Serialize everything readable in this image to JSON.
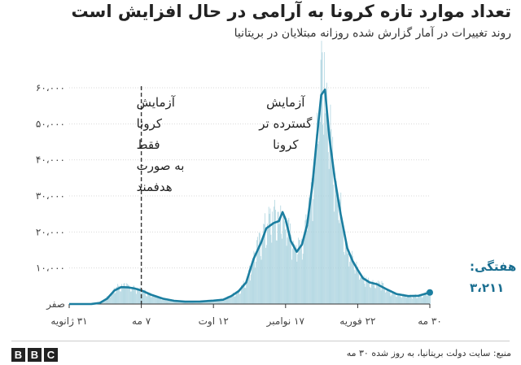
{
  "title": "تعداد موارد تازه کرونا به آرامی در حال افزایش است",
  "subtitle": "روند تغییرات در آمار گزارش شده روزانه مبتلایان در بریتانیا",
  "source": "منبع: سایت دولت بریتانیا، به روز شده ۳۰ مه",
  "logo": [
    "B",
    "B",
    "C"
  ],
  "colors": {
    "bars": "#a9d2de",
    "line": "#1b7ea0",
    "text": "#222222",
    "grid": "#d9d9d9",
    "highlight": "#1b6f91"
  },
  "chart_data": {
    "type": "bar",
    "title": "تعداد موارد تازه کرونا به آرامی در حال افزایش است",
    "subtitle": "روند تغییرات در آمار گزارش شده روزانه مبتلایان در بریتانیا",
    "x_domain": [
      "2020-01-31",
      "2021-05-30"
    ],
    "ylim": [
      0,
      60000
    ],
    "yticks": [
      {
        "value": 0,
        "label": "صفر"
      },
      {
        "value": 10000,
        "label": "۱۰،۰۰۰"
      },
      {
        "value": 20000,
        "label": "۲۰،۰۰۰"
      },
      {
        "value": 30000,
        "label": "۳۰،۰۰۰"
      },
      {
        "value": 40000,
        "label": "۴۰،۰۰۰"
      },
      {
        "value": 50000,
        "label": "۵۰،۰۰۰"
      },
      {
        "value": 60000,
        "label": "۶۰،۰۰۰"
      }
    ],
    "xticks": [
      {
        "date": "2020-01-31",
        "label": "۳۱ ژانویه"
      },
      {
        "date": "2020-05-07",
        "label": "۷ مه"
      },
      {
        "date": "2020-08-12",
        "label": "۱۲ اوت"
      },
      {
        "date": "2020-11-17",
        "label": "۱۷ نوامبر"
      },
      {
        "date": "2021-02-22",
        "label": "۲۲ فوریه"
      },
      {
        "date": "2021-05-30",
        "label": "۳۰ مه"
      }
    ],
    "grid": true,
    "series": [
      {
        "kind": "bars",
        "daily_keypoints": [
          [
            "2020-01-31",
            0
          ],
          [
            "2020-03-01",
            50
          ],
          [
            "2020-03-15",
            800
          ],
          [
            "2020-03-25",
            2500
          ],
          [
            "2020-04-05",
            4800
          ],
          [
            "2020-04-15",
            5000
          ],
          [
            "2020-04-25",
            4600
          ],
          [
            "2020-05-07",
            3800
          ],
          [
            "2020-05-20",
            2500
          ],
          [
            "2020-06-05",
            1500
          ],
          [
            "2020-06-20",
            900
          ],
          [
            "2020-07-05",
            700
          ],
          [
            "2020-07-25",
            750
          ],
          [
            "2020-08-12",
            1000
          ],
          [
            "2020-08-25",
            1300
          ],
          [
            "2020-09-05",
            2400
          ],
          [
            "2020-09-15",
            3800
          ],
          [
            "2020-09-25",
            6500
          ],
          [
            "2020-10-05",
            13000
          ],
          [
            "2020-10-15",
            18000
          ],
          [
            "2020-10-22",
            22000
          ],
          [
            "2020-11-01",
            24000
          ],
          [
            "2020-11-10",
            23500
          ],
          [
            "2020-11-17",
            22000
          ],
          [
            "2020-11-25",
            18000
          ],
          [
            "2020-12-03",
            15500
          ],
          [
            "2020-12-10",
            18000
          ],
          [
            "2020-12-18",
            28000
          ],
          [
            "2020-12-24",
            36000
          ],
          [
            "2020-12-30",
            50000
          ],
          [
            "2021-01-04",
            60000
          ],
          [
            "2021-01-10",
            58000
          ],
          [
            "2021-01-16",
            46000
          ],
          [
            "2021-01-24",
            34000
          ],
          [
            "2021-02-01",
            23000
          ],
          [
            "2021-02-08",
            15000
          ],
          [
            "2021-02-15",
            12000
          ],
          [
            "2021-02-22",
            9500
          ],
          [
            "2021-03-01",
            7000
          ],
          [
            "2021-03-15",
            5800
          ],
          [
            "2021-03-25",
            5500
          ],
          [
            "2021-04-05",
            3200
          ],
          [
            "2021-04-20",
            2400
          ],
          [
            "2021-05-05",
            2200
          ],
          [
            "2021-05-20",
            2500
          ],
          [
            "2021-05-30",
            3500
          ]
        ]
      },
      {
        "kind": "line",
        "name": "میانگین هفتگی",
        "points": [
          [
            "2020-01-31",
            0
          ],
          [
            "2020-03-01",
            20
          ],
          [
            "2020-03-12",
            300
          ],
          [
            "2020-03-22",
            1500
          ],
          [
            "2020-04-01",
            3800
          ],
          [
            "2020-04-10",
            4700
          ],
          [
            "2020-04-20",
            4600
          ],
          [
            "2020-04-28",
            4300
          ],
          [
            "2020-05-07",
            3800
          ],
          [
            "2020-05-20",
            2600
          ],
          [
            "2020-06-05",
            1500
          ],
          [
            "2020-06-20",
            900
          ],
          [
            "2020-07-05",
            650
          ],
          [
            "2020-07-25",
            700
          ],
          [
            "2020-08-12",
            950
          ],
          [
            "2020-08-25",
            1200
          ],
          [
            "2020-09-05",
            2200
          ],
          [
            "2020-09-15",
            3600
          ],
          [
            "2020-09-25",
            6000
          ],
          [
            "2020-10-05",
            12500
          ],
          [
            "2020-10-15",
            17000
          ],
          [
            "2020-10-22",
            21000
          ],
          [
            "2020-11-01",
            22500
          ],
          [
            "2020-11-08",
            23000
          ],
          [
            "2020-11-13",
            25500
          ],
          [
            "2020-11-17",
            23500
          ],
          [
            "2020-11-24",
            17500
          ],
          [
            "2020-12-02",
            14500
          ],
          [
            "2020-12-09",
            16500
          ],
          [
            "2020-12-16",
            22000
          ],
          [
            "2020-12-23",
            33000
          ],
          [
            "2020-12-30",
            48000
          ],
          [
            "2021-01-04",
            58000
          ],
          [
            "2021-01-09",
            59500
          ],
          [
            "2021-01-15",
            46000
          ],
          [
            "2021-01-22",
            35000
          ],
          [
            "2021-01-30",
            25000
          ],
          [
            "2021-02-08",
            15500
          ],
          [
            "2021-02-15",
            12000
          ],
          [
            "2021-02-22",
            9500
          ],
          [
            "2021-03-01",
            7200
          ],
          [
            "2021-03-10",
            6000
          ],
          [
            "2021-03-20",
            5500
          ],
          [
            "2021-04-01",
            4200
          ],
          [
            "2021-04-15",
            2800
          ],
          [
            "2021-05-01",
            2200
          ],
          [
            "2021-05-15",
            2300
          ],
          [
            "2021-05-30",
            3211
          ]
        ]
      }
    ],
    "annotations": [
      {
        "lines": [
          "آزمایش",
          "کرونا",
          "فقط",
          "به صورت",
          "هدفمند"
        ],
        "date": "2020-05-07",
        "side": "left",
        "divider": "dashed"
      },
      {
        "lines": [
          "آزمایش",
          "گسترده تر",
          "کرونا"
        ],
        "date": "2020-11-17",
        "side": "center"
      },
      {
        "lines": [
          "میانگین هفتگی:",
          "۳،۲۱۱"
        ],
        "date": "2021-05-30",
        "value": 3211,
        "side": "right",
        "highlight": true
      }
    ]
  }
}
